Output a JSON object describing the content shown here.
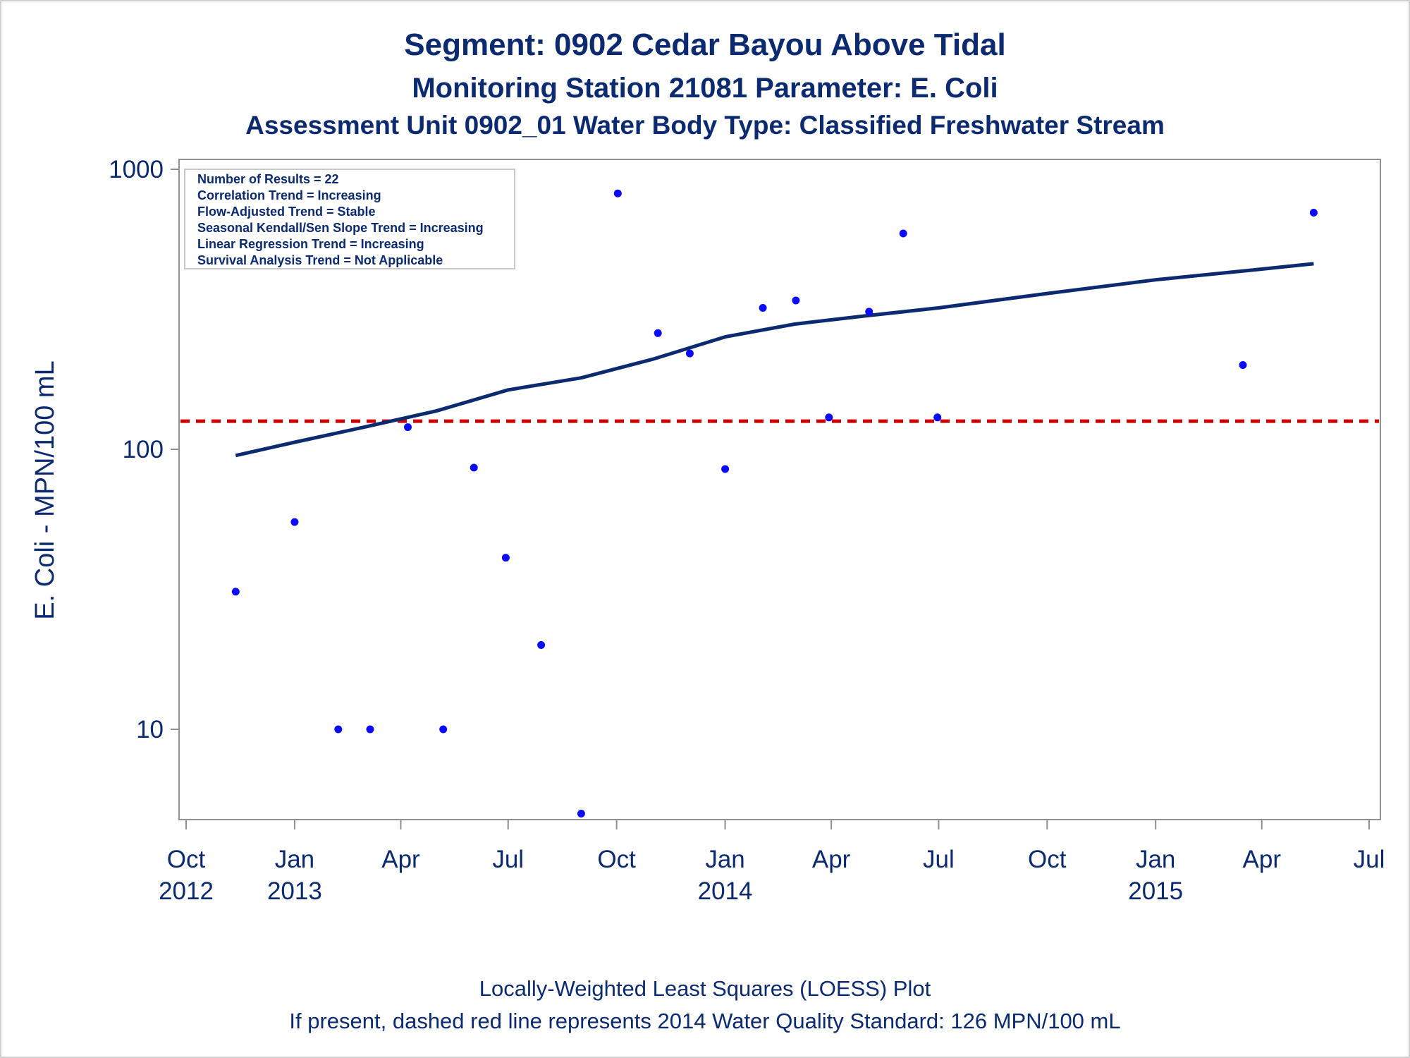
{
  "titles": {
    "line1": "Segment: 0902  Cedar Bayou Above Tidal",
    "line2": "Monitoring Station 21081 Parameter: E. Coli",
    "line3": "Assessment Unit 0902_01   Water Body Type: Classified Freshwater Stream"
  },
  "footnotes": {
    "line1": "Locally-Weighted Least Squares (LOESS) Plot",
    "line2": "If present, dashed red line represents 2014 Water Quality Standard: 126 MPN/100 mL"
  },
  "info_box": {
    "lines": [
      "Number of Results = 22",
      "Correlation Trend = Increasing",
      "Flow-Adjusted Trend = Stable",
      "Seasonal Kendall/Sen Slope Trend = Increasing",
      "Linear Regression Trend = Increasing",
      "Survival Analysis Trend = Not Applicable"
    ]
  },
  "colors": {
    "text": "#0b2a6f",
    "points": "#0a0aff",
    "loess": "#0b2a6f",
    "standard": "#cc0000",
    "axis": "#909090"
  },
  "chart_data": {
    "type": "scatter",
    "ylabel": "E. Coli - MPN/100 mL",
    "xlabel": "",
    "y_scale": "log",
    "ylim": [
      5,
      1000
    ],
    "xlim": [
      "2012-10-01",
      "2015-07-01"
    ],
    "y_ticks": [
      {
        "value": 10,
        "label": "10"
      },
      {
        "value": 100,
        "label": "100"
      },
      {
        "value": 1000,
        "label": "1000"
      }
    ],
    "x_ticks": [
      {
        "date": "2012-10-01",
        "label": "Oct",
        "year": "2012"
      },
      {
        "date": "2013-01-01",
        "label": "Jan",
        "year": "2013"
      },
      {
        "date": "2013-04-01",
        "label": "Apr",
        "year": ""
      },
      {
        "date": "2013-07-01",
        "label": "Jul",
        "year": ""
      },
      {
        "date": "2013-10-01",
        "label": "Oct",
        "year": ""
      },
      {
        "date": "2014-01-01",
        "label": "Jan",
        "year": "2014"
      },
      {
        "date": "2014-04-01",
        "label": "Apr",
        "year": ""
      },
      {
        "date": "2014-07-01",
        "label": "Jul",
        "year": ""
      },
      {
        "date": "2014-10-01",
        "label": "Oct",
        "year": ""
      },
      {
        "date": "2015-01-01",
        "label": "Jan",
        "year": "2015"
      },
      {
        "date": "2015-04-01",
        "label": "Apr",
        "year": ""
      },
      {
        "date": "2015-07-01",
        "label": "Jul",
        "year": ""
      }
    ],
    "points": [
      {
        "date": "2012-11-12",
        "value": 31
      },
      {
        "date": "2013-01-01",
        "value": 55
      },
      {
        "date": "2013-02-07",
        "value": 10
      },
      {
        "date": "2013-03-06",
        "value": 10
      },
      {
        "date": "2013-04-07",
        "value": 120
      },
      {
        "date": "2013-05-07",
        "value": 10
      },
      {
        "date": "2013-06-02",
        "value": 86
      },
      {
        "date": "2013-06-29",
        "value": 41
      },
      {
        "date": "2013-07-29",
        "value": 20
      },
      {
        "date": "2013-09-01",
        "value": 5
      },
      {
        "date": "2013-10-02",
        "value": 820
      },
      {
        "date": "2013-11-05",
        "value": 260
      },
      {
        "date": "2013-12-02",
        "value": 220
      },
      {
        "date": "2014-01-01",
        "value": 85
      },
      {
        "date": "2014-02-02",
        "value": 320
      },
      {
        "date": "2014-03-02",
        "value": 340
      },
      {
        "date": "2014-03-30",
        "value": 130
      },
      {
        "date": "2014-05-03",
        "value": 310
      },
      {
        "date": "2014-06-01",
        "value": 590
      },
      {
        "date": "2014-06-30",
        "value": 130
      },
      {
        "date": "2015-03-16",
        "value": 200
      },
      {
        "date": "2015-05-15",
        "value": 700
      }
    ],
    "loess": [
      {
        "date": "2012-11-12",
        "value": 95
      },
      {
        "date": "2013-01-01",
        "value": 106
      },
      {
        "date": "2013-03-01",
        "value": 120
      },
      {
        "date": "2013-05-01",
        "value": 137
      },
      {
        "date": "2013-07-01",
        "value": 163
      },
      {
        "date": "2013-09-01",
        "value": 180
      },
      {
        "date": "2013-11-01",
        "value": 210
      },
      {
        "date": "2014-01-01",
        "value": 252
      },
      {
        "date": "2014-03-01",
        "value": 280
      },
      {
        "date": "2014-05-01",
        "value": 300
      },
      {
        "date": "2014-07-01",
        "value": 320
      },
      {
        "date": "2014-10-01",
        "value": 360
      },
      {
        "date": "2015-01-01",
        "value": 403
      },
      {
        "date": "2015-04-01",
        "value": 440
      },
      {
        "date": "2015-05-15",
        "value": 460
      }
    ],
    "reference_line": {
      "value": 126,
      "style": "dashed"
    }
  }
}
